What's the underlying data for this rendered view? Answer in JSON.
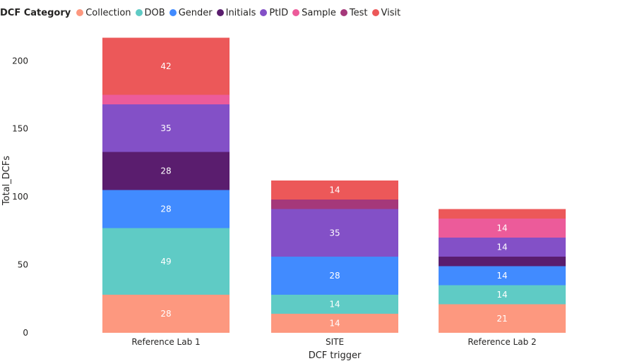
{
  "legend": {
    "title": "DCF Category"
  },
  "chart_data": {
    "type": "bar",
    "stacked": true,
    "categories": [
      "Reference Lab 1",
      "SITE",
      "Reference Lab 2"
    ],
    "xlabel": "DCF trigger",
    "ylabel": "Total_DCFs",
    "ylim": [
      0,
      224
    ],
    "yticks": [
      0,
      50,
      100,
      150,
      200
    ],
    "legend_position": "top-left",
    "series": [
      {
        "name": "Collection",
        "color": "#FD987F",
        "values": [
          28,
          14,
          21
        ]
      },
      {
        "name": "DOB",
        "color": "#5FCBC5",
        "values": [
          49,
          14,
          14
        ]
      },
      {
        "name": "Gender",
        "color": "#418BFF",
        "values": [
          28,
          28,
          14
        ]
      },
      {
        "name": "Initials",
        "color": "#5A1D6E",
        "values": [
          28,
          0,
          7
        ]
      },
      {
        "name": "PtID",
        "color": "#8350C7",
        "values": [
          35,
          35,
          14
        ]
      },
      {
        "name": "Sample",
        "color": "#EC5B9A",
        "values": [
          7,
          0,
          14
        ]
      },
      {
        "name": "Test",
        "color": "#A5387A",
        "values": [
          0,
          7,
          0
        ]
      },
      {
        "name": "Visit",
        "color": "#EC5859",
        "values": [
          42,
          14,
          7
        ]
      }
    ]
  }
}
